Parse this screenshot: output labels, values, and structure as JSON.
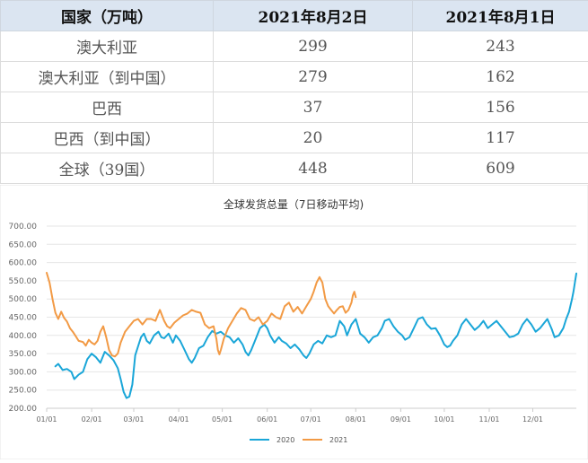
{
  "table": {
    "headers": [
      "国家（万吨）",
      "2021年8月2日",
      "2021年8月1日"
    ],
    "rows": [
      [
        "澳大利亚",
        "299",
        "243"
      ],
      [
        "澳大利亚（到中国）",
        "279",
        "162"
      ],
      [
        "巴西",
        "37",
        "156"
      ],
      [
        "巴西（到中国）",
        "20",
        "117"
      ],
      [
        "全球（39国）",
        "448",
        "609"
      ]
    ]
  },
  "chart_data": {
    "type": "line",
    "title": "全球发货总量（7日移动平均)",
    "y_ticks": [
      "700.00",
      "650.00",
      "600.00",
      "550.00",
      "500.00",
      "450.00",
      "400.00",
      "350.00",
      "300.00",
      "250.00",
      "200.00"
    ],
    "ylim": [
      200,
      700
    ],
    "x_ticks": [
      "01/01",
      "02/01",
      "03/01",
      "04/01",
      "05/01",
      "06/01",
      "07/01",
      "08/01",
      "09/01",
      "10/01",
      "11/01",
      "12/01"
    ],
    "x_unit": "day-of-year",
    "xlim": [
      1,
      366
    ],
    "grid": "horizontal",
    "legend_position": "bottom",
    "colors": {
      "s2020": "#1aa6d8",
      "s2021": "#f29a45",
      "grid": "#e6e6e6",
      "axis_text": "#666666"
    },
    "series": [
      {
        "name": "2020",
        "color": "#1aa6d8",
        "points": [
          [
            7,
            315
          ],
          [
            9,
            322
          ],
          [
            12,
            305
          ],
          [
            15,
            308
          ],
          [
            18,
            300
          ],
          [
            20,
            280
          ],
          [
            23,
            292
          ],
          [
            26,
            300
          ],
          [
            29,
            335
          ],
          [
            32,
            350
          ],
          [
            35,
            340
          ],
          [
            38,
            325
          ],
          [
            41,
            355
          ],
          [
            44,
            345
          ],
          [
            47,
            332
          ],
          [
            50,
            310
          ],
          [
            52,
            280
          ],
          [
            54,
            245
          ],
          [
            56,
            228
          ],
          [
            58,
            232
          ],
          [
            60,
            265
          ],
          [
            62,
            345
          ],
          [
            64,
            370
          ],
          [
            66,
            395
          ],
          [
            68,
            405
          ],
          [
            70,
            385
          ],
          [
            72,
            378
          ],
          [
            75,
            400
          ],
          [
            78,
            410
          ],
          [
            80,
            395
          ],
          [
            82,
            392
          ],
          [
            85,
            405
          ],
          [
            88,
            380
          ],
          [
            90,
            400
          ],
          [
            93,
            385
          ],
          [
            96,
            360
          ],
          [
            99,
            335
          ],
          [
            101,
            325
          ],
          [
            103,
            338
          ],
          [
            106,
            365
          ],
          [
            109,
            372
          ],
          [
            112,
            395
          ],
          [
            115,
            412
          ],
          [
            118,
            405
          ],
          [
            121,
            410
          ],
          [
            124,
            400
          ],
          [
            127,
            395
          ],
          [
            130,
            380
          ],
          [
            133,
            392
          ],
          [
            136,
            375
          ],
          [
            138,
            355
          ],
          [
            140,
            345
          ],
          [
            142,
            360
          ],
          [
            145,
            390
          ],
          [
            148,
            420
          ],
          [
            151,
            430
          ],
          [
            153,
            420
          ],
          [
            155,
            400
          ],
          [
            158,
            380
          ],
          [
            161,
            395
          ],
          [
            163,
            385
          ],
          [
            166,
            378
          ],
          [
            169,
            365
          ],
          [
            172,
            375
          ],
          [
            175,
            362
          ],
          [
            178,
            345
          ],
          [
            180,
            338
          ],
          [
            182,
            350
          ],
          [
            185,
            375
          ],
          [
            188,
            385
          ],
          [
            191,
            378
          ],
          [
            194,
            400
          ],
          [
            197,
            395
          ],
          [
            200,
            400
          ],
          [
            203,
            440
          ],
          [
            206,
            425
          ],
          [
            208,
            400
          ],
          [
            211,
            430
          ],
          [
            214,
            445
          ],
          [
            217,
            405
          ],
          [
            220,
            395
          ],
          [
            223,
            380
          ],
          [
            226,
            395
          ],
          [
            229,
            400
          ],
          [
            232,
            420
          ],
          [
            234,
            440
          ],
          [
            237,
            445
          ],
          [
            240,
            425
          ],
          [
            243,
            410
          ],
          [
            246,
            400
          ],
          [
            248,
            388
          ],
          [
            251,
            395
          ],
          [
            254,
            420
          ],
          [
            257,
            445
          ],
          [
            260,
            450
          ],
          [
            263,
            430
          ],
          [
            266,
            418
          ],
          [
            269,
            420
          ],
          [
            272,
            400
          ],
          [
            275,
            375
          ],
          [
            277,
            368
          ],
          [
            279,
            372
          ],
          [
            281,
            385
          ],
          [
            284,
            400
          ],
          [
            287,
            430
          ],
          [
            290,
            445
          ],
          [
            293,
            430
          ],
          [
            296,
            415
          ],
          [
            299,
            425
          ],
          [
            302,
            440
          ],
          [
            305,
            420
          ],
          [
            308,
            430
          ],
          [
            311,
            440
          ],
          [
            314,
            425
          ],
          [
            317,
            410
          ],
          [
            320,
            395
          ],
          [
            323,
            398
          ],
          [
            326,
            405
          ],
          [
            329,
            430
          ],
          [
            332,
            445
          ],
          [
            335,
            430
          ],
          [
            338,
            410
          ],
          [
            341,
            420
          ],
          [
            344,
            435
          ],
          [
            346,
            445
          ],
          [
            349,
            418
          ],
          [
            351,
            395
          ],
          [
            354,
            400
          ],
          [
            357,
            420
          ],
          [
            359,
            445
          ],
          [
            361,
            465
          ],
          [
            363,
            500
          ],
          [
            364,
            520
          ],
          [
            365,
            545
          ],
          [
            366,
            570
          ]
        ]
      },
      {
        "name": "2021",
        "color": "#f29a45",
        "points": [
          [
            1,
            572
          ],
          [
            3,
            545
          ],
          [
            5,
            500
          ],
          [
            7,
            462
          ],
          [
            9,
            445
          ],
          [
            11,
            465
          ],
          [
            13,
            448
          ],
          [
            15,
            438
          ],
          [
            17,
            420
          ],
          [
            19,
            410
          ],
          [
            21,
            398
          ],
          [
            23,
            385
          ],
          [
            26,
            382
          ],
          [
            28,
            372
          ],
          [
            30,
            388
          ],
          [
            32,
            380
          ],
          [
            34,
            375
          ],
          [
            36,
            385
          ],
          [
            38,
            410
          ],
          [
            40,
            425
          ],
          [
            42,
            395
          ],
          [
            44,
            360
          ],
          [
            46,
            345
          ],
          [
            48,
            342
          ],
          [
            50,
            350
          ],
          [
            52,
            380
          ],
          [
            55,
            410
          ],
          [
            58,
            425
          ],
          [
            61,
            440
          ],
          [
            64,
            445
          ],
          [
            67,
            430
          ],
          [
            70,
            445
          ],
          [
            73,
            445
          ],
          [
            76,
            440
          ],
          [
            79,
            470
          ],
          [
            82,
            440
          ],
          [
            84,
            425
          ],
          [
            86,
            420
          ],
          [
            89,
            435
          ],
          [
            92,
            445
          ],
          [
            95,
            455
          ],
          [
            98,
            460
          ],
          [
            101,
            470
          ],
          [
            104,
            465
          ],
          [
            107,
            462
          ],
          [
            110,
            430
          ],
          [
            113,
            420
          ],
          [
            116,
            425
          ],
          [
            118,
            390
          ],
          [
            119,
            360
          ],
          [
            120,
            348
          ],
          [
            121,
            360
          ],
          [
            123,
            390
          ],
          [
            126,
            420
          ],
          [
            129,
            440
          ],
          [
            132,
            460
          ],
          [
            135,
            475
          ],
          [
            138,
            470
          ],
          [
            141,
            445
          ],
          [
            144,
            440
          ],
          [
            147,
            450
          ],
          [
            150,
            430
          ],
          [
            153,
            440
          ],
          [
            156,
            460
          ],
          [
            159,
            450
          ],
          [
            162,
            445
          ],
          [
            165,
            480
          ],
          [
            168,
            490
          ],
          [
            171,
            465
          ],
          [
            174,
            478
          ],
          [
            177,
            460
          ],
          [
            180,
            480
          ],
          [
            183,
            500
          ],
          [
            185,
            520
          ],
          [
            187,
            545
          ],
          [
            189,
            560
          ],
          [
            191,
            545
          ],
          [
            193,
            500
          ],
          [
            195,
            480
          ],
          [
            197,
            470
          ],
          [
            199,
            460
          ],
          [
            201,
            470
          ],
          [
            203,
            478
          ],
          [
            205,
            480
          ],
          [
            207,
            462
          ],
          [
            209,
            470
          ],
          [
            211,
            490
          ],
          [
            212,
            510
          ],
          [
            213,
            520
          ],
          [
            214,
            505
          ]
        ]
      }
    ]
  }
}
